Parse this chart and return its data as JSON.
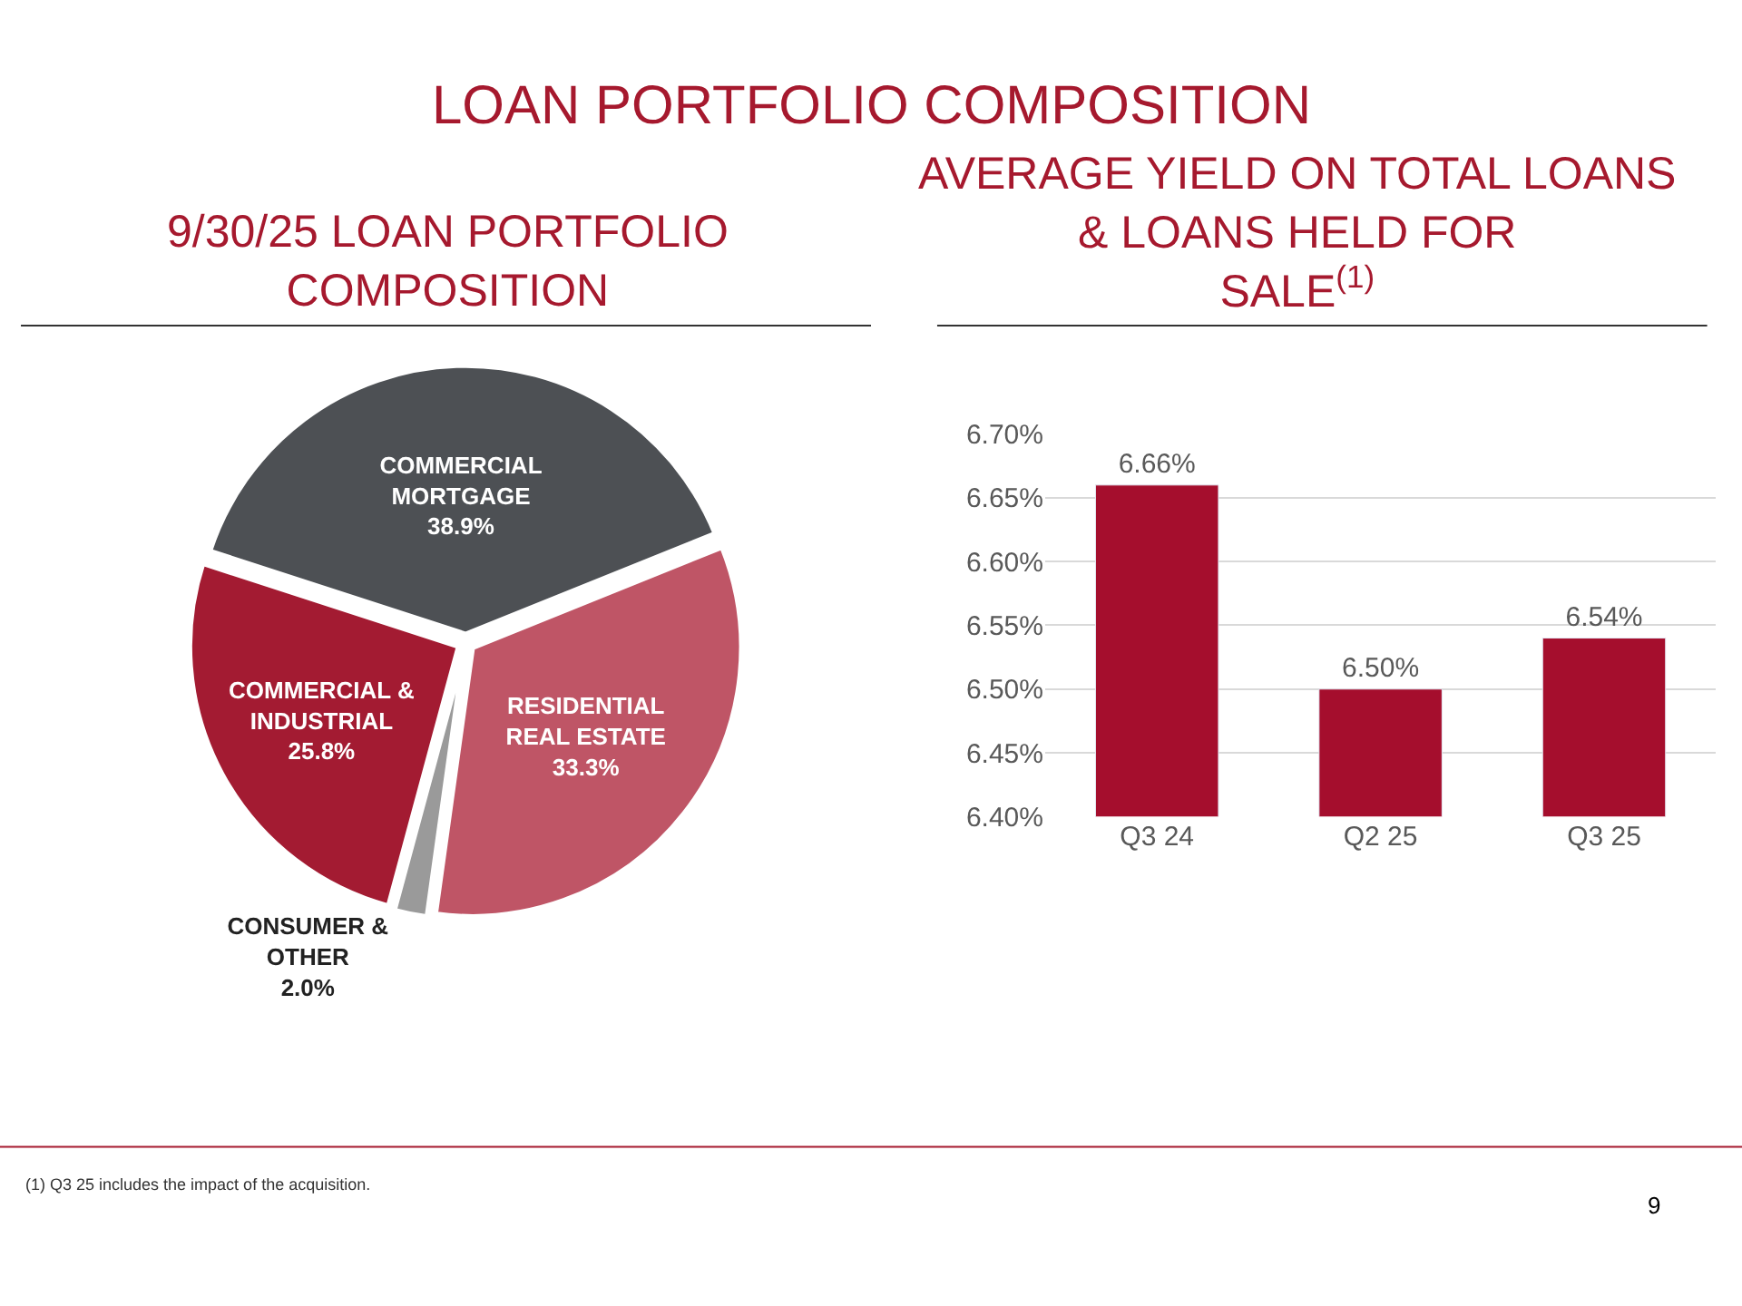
{
  "chart_data": [
    {
      "type": "other",
      "title": "LOAN PORTFOLIO COMPOSITION",
      "annotations": [
        "(1) Q3 25 includes the impact of the acquisition.",
        "9"
      ]
    },
    {
      "type": "pie",
      "title": "9/30/25 LOAN PORTFOLIO COMPOSITION",
      "categories": [
        "COMMERCIAL MORTGAGE",
        "RESIDENTIAL REAL ESTATE",
        "CONSUMER & OTHER",
        "COMMERCIAL & INDUSTRIAL"
      ],
      "values": [
        38.9,
        33.3,
        2.0,
        25.8
      ],
      "value_labels": [
        "38.9%",
        "33.3%",
        "2.0%",
        "25.8%"
      ],
      "colors": [
        "#4d5054",
        "#bf5566",
        "#9a9a9a",
        "#a31b32"
      ]
    },
    {
      "type": "bar",
      "title": "AVERAGE YIELD ON TOTAL LOANS & LOANS HELD FOR SALE$^{(1)}$",
      "categories": [
        "Q3 24",
        "Q2 25",
        "Q3 25"
      ],
      "values": [
        6.66,
        6.5,
        6.54
      ],
      "color": "#a50e2d",
      "value_labels": [
        "6.66%",
        "6.50%",
        "6.54%"
      ],
      "ylim": [
        6.4,
        6.7
      ],
      "yticks": [
        {
          "value": 6.4,
          "label": "6.40%"
        },
        {
          "value": 6.45,
          "label": "6.45%"
        },
        {
          "value": 6.5,
          "label": "6.50%"
        },
        {
          "value": 6.55,
          "label": "6.55%"
        },
        {
          "value": 6.6,
          "label": "6.60%"
        },
        {
          "value": 6.65,
          "label": "6.65%"
        },
        {
          "value": 6.7,
          "label": "6.70%"
        }
      ],
      "grid": "y"
    }
  ]
}
